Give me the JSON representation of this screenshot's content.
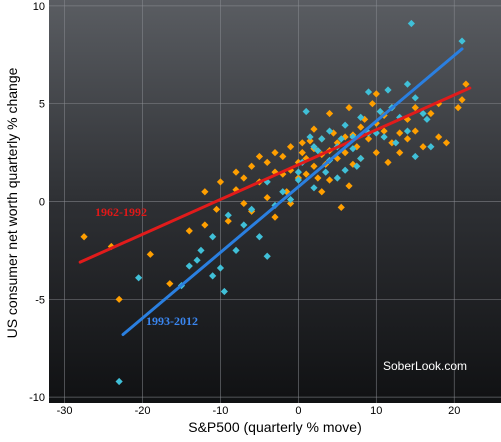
{
  "chart_data": {
    "type": "scatter",
    "xlabel": "S&P500 (quarterly % move)",
    "ylabel": "US consumer net worth quarterly % change",
    "xlim": [
      -32,
      26
    ],
    "ylim": [
      -10.3,
      10.3
    ],
    "x_ticks": [
      "-30",
      "-20",
      "-10",
      "0",
      "10",
      "20"
    ],
    "y_ticks": [
      "-10",
      "-5",
      "0",
      "5",
      "10"
    ],
    "grid": true,
    "watermark": "SoberLook.com",
    "series": [
      {
        "name": "1962-1992",
        "color": "#ff9f00",
        "line_color": "#e11b1b",
        "marker": "diamond",
        "points": [
          [
            -27.5,
            -1.8
          ],
          [
            -24,
            -2.3
          ],
          [
            -23,
            -5
          ],
          [
            -19,
            -2.7
          ],
          [
            -16.5,
            -4.2
          ],
          [
            -14,
            -1.5
          ],
          [
            -12,
            -1.2
          ],
          [
            -12,
            0.5
          ],
          [
            -10,
            1
          ],
          [
            -10.5,
            -0.4
          ],
          [
            -9,
            -1
          ],
          [
            -8,
            0.6
          ],
          [
            -8,
            1.5
          ],
          [
            -7,
            1.2
          ],
          [
            -7,
            -0.1
          ],
          [
            -6,
            -0.5
          ],
          [
            -6,
            1.8
          ],
          [
            -5,
            2.3
          ],
          [
            -5,
            1
          ],
          [
            -4,
            0.2
          ],
          [
            -4,
            2
          ],
          [
            -3,
            1.5
          ],
          [
            -3,
            2.5
          ],
          [
            -3,
            -0.8
          ],
          [
            -2,
            1.4
          ],
          [
            -2,
            2.3
          ],
          [
            -1.5,
            0.5
          ],
          [
            -1,
            1.6
          ],
          [
            -1,
            2.8
          ],
          [
            0,
            1.2
          ],
          [
            0,
            2
          ],
          [
            0.5,
            2.5
          ],
          [
            0.5,
            3
          ],
          [
            1,
            1.4
          ],
          [
            1,
            2.2
          ],
          [
            1.5,
            3.1
          ],
          [
            2,
            2.7
          ],
          [
            2,
            1.8
          ],
          [
            2,
            3.7
          ],
          [
            2.5,
            1.2
          ],
          [
            3,
            2.4
          ],
          [
            3,
            3.2
          ],
          [
            3.5,
            1.9
          ],
          [
            4,
            2.6
          ],
          [
            4,
            4.5
          ],
          [
            4,
            1.1
          ],
          [
            4.5,
            3.5
          ],
          [
            5,
            2.2
          ],
          [
            5,
            3
          ],
          [
            5.5,
            -0.3
          ],
          [
            6,
            2.5
          ],
          [
            6,
            3.3
          ],
          [
            6.5,
            4.8
          ],
          [
            7,
            1.9
          ],
          [
            7,
            3.4
          ],
          [
            7.5,
            2.8
          ],
          [
            8,
            3.8
          ],
          [
            8,
            2.2
          ],
          [
            8.5,
            4.2
          ],
          [
            9,
            3.2
          ],
          [
            9.5,
            5
          ],
          [
            10,
            2.5
          ],
          [
            10,
            4
          ],
          [
            10,
            5.5
          ],
          [
            11,
            3.6
          ],
          [
            11,
            4.4
          ],
          [
            12,
            3
          ],
          [
            12,
            4.8
          ],
          [
            13,
            3.5
          ],
          [
            13,
            2.5
          ],
          [
            14,
            4.2
          ],
          [
            14,
            3.2
          ],
          [
            15,
            3.6
          ],
          [
            15,
            4.8
          ],
          [
            16,
            2.8
          ],
          [
            17,
            4.5
          ],
          [
            18,
            3.3
          ],
          [
            18,
            5
          ],
          [
            19,
            3
          ],
          [
            20.5,
            4.8
          ],
          [
            21.5,
            6
          ],
          [
            21,
            5.2
          ],
          [
            6.5,
            0.8
          ],
          [
            3,
            0.5
          ],
          [
            -1,
            -0.1
          ],
          [
            11.5,
            2
          ]
        ],
        "fit": [
          [
            -28,
            -3.1
          ],
          [
            22,
            5.8
          ]
        ]
      },
      {
        "name": "1993-2012",
        "color": "#40c0d8",
        "line_color": "#2a7fe0",
        "marker": "diamond",
        "points": [
          [
            -23,
            -9.2
          ],
          [
            -20.5,
            -3.9
          ],
          [
            -15,
            -4.3
          ],
          [
            -14,
            -3.3
          ],
          [
            -13,
            -3
          ],
          [
            -12.5,
            -2.5
          ],
          [
            -11,
            -1.8
          ],
          [
            -10,
            -3.4
          ],
          [
            -11,
            -3.8
          ],
          [
            -9.5,
            -4.6
          ],
          [
            -9,
            -0.7
          ],
          [
            -8,
            -2.5
          ],
          [
            -7,
            -1.2
          ],
          [
            -6,
            -0.4
          ],
          [
            -5,
            -1.8
          ],
          [
            -4,
            -2.8
          ],
          [
            -4,
            1
          ],
          [
            -3,
            -0.2
          ],
          [
            -2,
            0.5
          ],
          [
            -1,
            0.1
          ],
          [
            0,
            1.1
          ],
          [
            0.5,
            2
          ],
          [
            1,
            4.6
          ],
          [
            1.5,
            3.3
          ],
          [
            2,
            0.7
          ],
          [
            2,
            2.8
          ],
          [
            3,
            3.2
          ],
          [
            3.5,
            1.5
          ],
          [
            4,
            2.1
          ],
          [
            4,
            3.6
          ],
          [
            5,
            2.8
          ],
          [
            5,
            1.2
          ],
          [
            5.5,
            3.2
          ],
          [
            6,
            3.9
          ],
          [
            6,
            1.6
          ],
          [
            7,
            2.7
          ],
          [
            7,
            3.3
          ],
          [
            8,
            2.2
          ],
          [
            8,
            4.3
          ],
          [
            9,
            3.5
          ],
          [
            9,
            5.6
          ],
          [
            10,
            3.5
          ],
          [
            11,
            3.3
          ],
          [
            11.5,
            5.7
          ],
          [
            12,
            4.8
          ],
          [
            12.5,
            3
          ],
          [
            13,
            4.3
          ],
          [
            14,
            6
          ],
          [
            14,
            3.6
          ],
          [
            14.5,
            9.1
          ],
          [
            15,
            2.3
          ],
          [
            15,
            5.3
          ],
          [
            16,
            4.5
          ],
          [
            16.5,
            4.2
          ],
          [
            17,
            2.8
          ],
          [
            21,
            8.2
          ],
          [
            0,
            1.5
          ],
          [
            2.5,
            2.6
          ],
          [
            7.5,
            1.8
          ],
          [
            10.5,
            4.6
          ]
        ],
        "fit": [
          [
            -22.5,
            -6.8
          ],
          [
            21,
            7.8
          ]
        ]
      }
    ]
  }
}
